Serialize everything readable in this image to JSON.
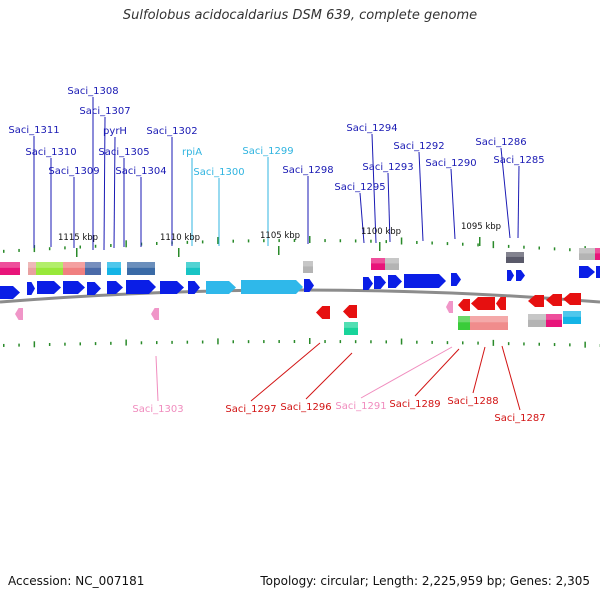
{
  "title": "Sulfolobus acidocaldarius DSM 639, complete genome",
  "footer": {
    "accession": "Accession: NC_007181",
    "summary": "Topology: circular; Length: 2,225,959 bp; Genes: 2,305"
  },
  "colors": {
    "forward_gene": "#0a1ee6",
    "reverse_gene": "#e61010",
    "forward_label": "#1a1ab4",
    "forward_label_light": "#30b4e0",
    "reverse_label": "#d21414",
    "reverse_label_light": "#f08cbe",
    "backbone": "#8c8c8c",
    "tick": "#2a8a2a"
  },
  "scale_labels": [
    "1115 kbp",
    "1110 kbp",
    "1105 kbp",
    "1100 kbp",
    "1095 kbp"
  ],
  "forward_labels": [
    "Saci_1308",
    "Saci_1307",
    "Saci_1311",
    "pyrH",
    "Saci_1302",
    "Saci_1310",
    "Saci_1305",
    "rpiA",
    "Saci_1299",
    "Saci_1309",
    "Saci_1304",
    "Saci_1300",
    "Saci_1298",
    "Saci_1294",
    "Saci_1292",
    "Saci_1286",
    "Saci_1293",
    "Saci_1290",
    "Saci_1285",
    "Saci_1295"
  ],
  "reverse_labels": [
    "Saci_1303",
    "Saci_1297",
    "Saci_1296",
    "Saci_1291",
    "Saci_1289",
    "Saci_1288",
    "Saci_1287"
  ]
}
